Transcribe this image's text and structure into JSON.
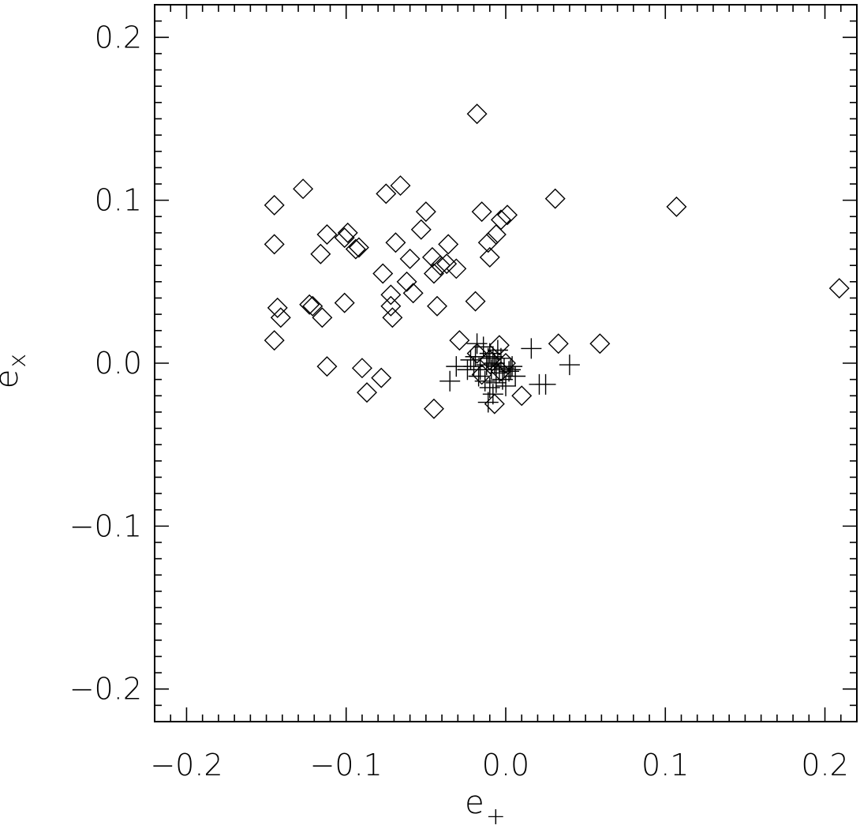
{
  "chart_data": {
    "type": "scatter",
    "xlabel": "e",
    "xlabel_sub": "+",
    "ylabel": "e",
    "ylabel_sub": "x",
    "xlim": [
      -0.22,
      0.22
    ],
    "ylim": [
      -0.22,
      0.22
    ],
    "xticks": [
      -0.2,
      -0.1,
      0.0,
      0.1,
      0.2
    ],
    "yticks": [
      -0.2,
      -0.1,
      0.0,
      0.1,
      0.2
    ],
    "xtick_labels": [
      "−0.2",
      "−0.1",
      "0.0",
      "0.1",
      "0.2"
    ],
    "ytick_labels": [
      "−0.2",
      "−0.1",
      "0.0",
      "0.1",
      "0.2"
    ],
    "grid": false,
    "series": [
      {
        "marker": "diamond",
        "points": [
          [
            -0.018,
            0.153
          ],
          [
            -0.145,
            0.097
          ],
          [
            -0.127,
            0.107
          ],
          [
            -0.075,
            0.104
          ],
          [
            -0.066,
            0.109
          ],
          [
            -0.145,
            0.073
          ],
          [
            -0.112,
            0.079
          ],
          [
            -0.101,
            0.077
          ],
          [
            -0.099,
            0.08
          ],
          [
            -0.094,
            0.07
          ],
          [
            -0.092,
            0.071
          ],
          [
            -0.116,
            0.067
          ],
          [
            -0.069,
            0.074
          ],
          [
            -0.05,
            0.093
          ],
          [
            -0.015,
            0.093
          ],
          [
            -0.003,
            0.088
          ],
          [
            0.001,
            0.091
          ],
          [
            0.031,
            0.101
          ],
          [
            0.107,
            0.096
          ],
          [
            0.209,
            0.046
          ],
          [
            -0.053,
            0.082
          ],
          [
            -0.036,
            0.073
          ],
          [
            -0.011,
            0.074
          ],
          [
            -0.006,
            0.079
          ],
          [
            -0.01,
            0.065
          ],
          [
            -0.06,
            0.064
          ],
          [
            -0.046,
            0.065
          ],
          [
            -0.041,
            0.06
          ],
          [
            -0.037,
            0.061
          ],
          [
            -0.031,
            0.058
          ],
          [
            -0.045,
            0.055
          ],
          [
            -0.077,
            0.055
          ],
          [
            -0.062,
            0.05
          ],
          [
            -0.058,
            0.043
          ],
          [
            -0.072,
            0.042
          ],
          [
            -0.072,
            0.035
          ],
          [
            -0.071,
            0.028
          ],
          [
            -0.101,
            0.037
          ],
          [
            -0.123,
            0.036
          ],
          [
            -0.121,
            0.035
          ],
          [
            -0.143,
            0.034
          ],
          [
            -0.141,
            0.028
          ],
          [
            -0.115,
            0.028
          ],
          [
            -0.145,
            0.014
          ],
          [
            -0.043,
            0.035
          ],
          [
            -0.019,
            0.038
          ],
          [
            -0.029,
            0.014
          ],
          [
            -0.112,
            -0.002
          ],
          [
            -0.09,
            -0.003
          ],
          [
            -0.078,
            -0.009
          ],
          [
            -0.087,
            -0.018
          ],
          [
            -0.045,
            -0.028
          ],
          [
            -0.007,
            -0.025
          ],
          [
            0.01,
            -0.02
          ],
          [
            0.033,
            0.012
          ],
          [
            0.059,
            0.012
          ],
          [
            -0.004,
            0.011
          ],
          [
            -0.018,
            0.006
          ],
          [
            -0.01,
            0.002
          ],
          [
            -0.003,
            -0.005
          ],
          [
            -0.015,
            -0.007
          ],
          [
            0.0,
            0.0
          ]
        ]
      },
      {
        "marker": "plus",
        "points": [
          [
            -0.018,
            0.012
          ],
          [
            -0.014,
            0.01
          ],
          [
            -0.01,
            0.006
          ],
          [
            -0.008,
            0.004
          ],
          [
            -0.005,
            0.008
          ],
          [
            -0.003,
            0.003
          ],
          [
            -0.022,
            0.002
          ],
          [
            -0.02,
            -0.002
          ],
          [
            -0.016,
            -0.004
          ],
          [
            -0.012,
            -0.001
          ],
          [
            -0.009,
            -0.004
          ],
          [
            -0.006,
            -0.002
          ],
          [
            -0.004,
            -0.006
          ],
          [
            -0.001,
            -0.003
          ],
          [
            0.002,
            -0.005
          ],
          [
            0.004,
            -0.002
          ],
          [
            0.006,
            -0.008
          ],
          [
            -0.024,
            -0.004
          ],
          [
            -0.017,
            -0.008
          ],
          [
            -0.013,
            -0.011
          ],
          [
            -0.01,
            -0.015
          ],
          [
            -0.008,
            -0.019
          ],
          [
            -0.011,
            -0.024
          ],
          [
            -0.006,
            -0.012
          ],
          [
            -0.002,
            -0.01
          ],
          [
            0.0,
            -0.014
          ],
          [
            0.003,
            -0.004
          ],
          [
            -0.019,
            0.004
          ],
          [
            -0.011,
            0.003
          ],
          [
            -0.007,
            0.0
          ],
          [
            0.016,
            0.009
          ],
          [
            0.04,
            -0.001
          ],
          [
            0.021,
            -0.013
          ],
          [
            0.025,
            -0.013
          ],
          [
            -0.035,
            -0.011
          ],
          [
            -0.031,
            -0.002
          ]
        ]
      }
    ]
  }
}
